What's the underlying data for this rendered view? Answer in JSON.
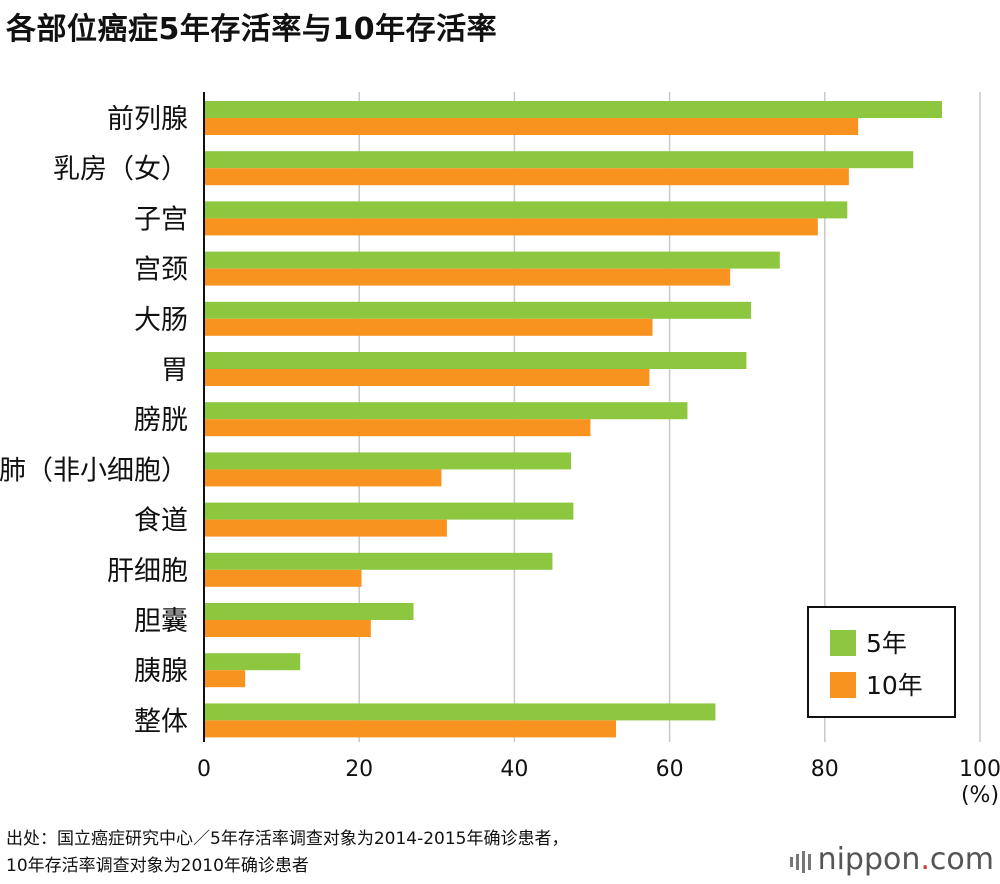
{
  "title": "各部位癌症5年存活率与10年存活率",
  "chart_data": {
    "type": "bar",
    "orientation": "horizontal",
    "categories": [
      "前列腺",
      "乳房（女）",
      "子宫",
      "宫颈",
      "大肠",
      "胃",
      "膀胱",
      "肺（非小细胞）",
      "食道",
      "肝细胞",
      "胆囊",
      "胰腺",
      "整体"
    ],
    "series": [
      {
        "name": "5年",
        "color": "#8dc63f",
        "values": [
          95.1,
          91.4,
          82.9,
          74.2,
          70.5,
          69.9,
          62.3,
          47.3,
          47.6,
          44.9,
          27.0,
          12.4,
          65.9
        ]
      },
      {
        "name": "10年",
        "color": "#f7931e",
        "values": [
          84.3,
          83.1,
          79.1,
          67.8,
          57.8,
          57.4,
          49.8,
          30.6,
          31.3,
          20.3,
          21.5,
          5.3,
          53.1
        ]
      }
    ],
    "xlim": [
      0,
      100
    ],
    "xticks": [
      "0",
      "20",
      "40",
      "60",
      "80",
      "100"
    ],
    "xticks_values": [
      0,
      20,
      40,
      60,
      80,
      100
    ],
    "unit_label": "(%)",
    "grid": true,
    "legend_position": "bottom-right"
  },
  "source": {
    "line1": "出处：国立癌症研究中心／5年存活率调查对象为2014-2015年确诊患者，",
    "line2": "10年存活率调查对象为2010年确诊患者"
  },
  "brand": {
    "name": "nippon",
    "dot": ".",
    "suffix": "com"
  }
}
